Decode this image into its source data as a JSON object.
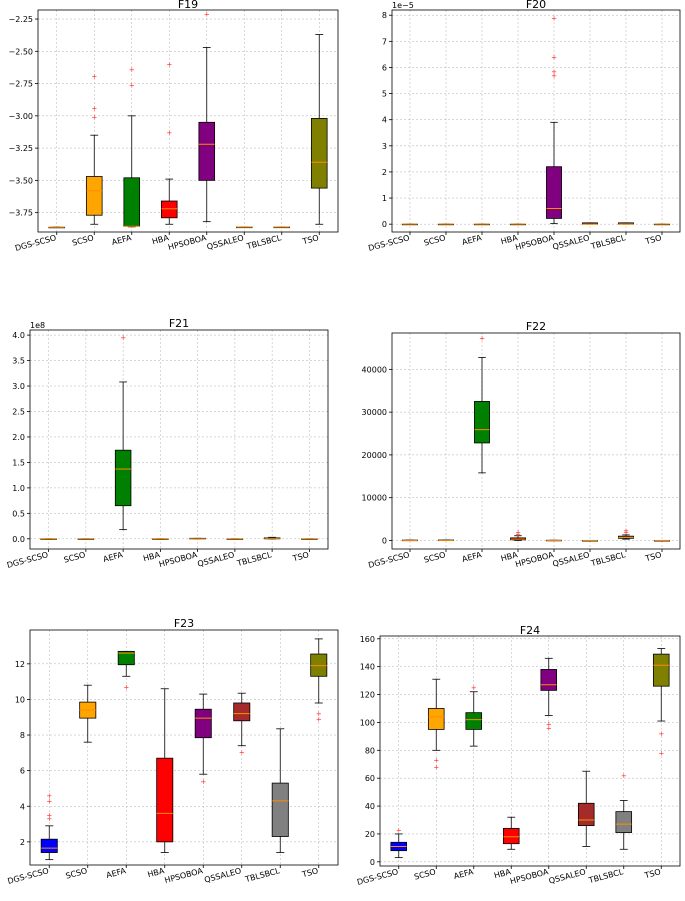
{
  "categories": [
    "DGS-SCSO",
    "SCSO",
    "AEFA",
    "HBA",
    "HPSOBOA",
    "QSSALEO",
    "TBLSBCL",
    "TSO"
  ],
  "colors": [
    "#0000ff",
    "#ffa500",
    "#008000",
    "#ff0000",
    "#800080",
    "#a52a2a",
    "#808080",
    "#808000"
  ],
  "chart_data": [
    {
      "type": "box",
      "title": "F19",
      "exponent": "",
      "ylim": [
        -3.9,
        -2.18
      ],
      "yticks": [
        -3.75,
        -3.5,
        -3.25,
        -3.0,
        -2.75,
        -2.5,
        -2.25
      ],
      "ytick_labels": [
        "−3.75",
        "−3.50",
        "−3.25",
        "−3.00",
        "−2.75",
        "−2.50",
        "−2.25"
      ],
      "series": [
        {
          "name": "DGS-SCSO",
          "min": -3.863,
          "q1": -3.863,
          "median": -3.863,
          "q3": -3.863,
          "max": -3.863,
          "outliers": []
        },
        {
          "name": "SCSO",
          "min": -3.84,
          "q1": -3.77,
          "median": -3.58,
          "q3": -3.47,
          "max": -3.15,
          "outliers": [
            -2.69,
            -2.94,
            -3.01
          ]
        },
        {
          "name": "AEFA",
          "min": -3.86,
          "q1": -3.855,
          "median": -3.855,
          "q3": -3.48,
          "max": -3.0,
          "outliers": [
            -2.64,
            -2.76
          ]
        },
        {
          "name": "HBA",
          "min": -3.84,
          "q1": -3.79,
          "median": -3.72,
          "q3": -3.66,
          "max": -3.49,
          "outliers": [
            -2.6,
            -3.13
          ]
        },
        {
          "name": "HPSOBOA",
          "min": -3.82,
          "q1": -3.5,
          "median": -3.22,
          "q3": -3.05,
          "max": -2.47,
          "outliers": [
            -2.21
          ]
        },
        {
          "name": "QSSALEO",
          "min": -3.862,
          "q1": -3.862,
          "median": -3.862,
          "q3": -3.862,
          "max": -3.862,
          "outliers": []
        },
        {
          "name": "TBLSBCL",
          "min": -3.862,
          "q1": -3.862,
          "median": -3.862,
          "q3": -3.862,
          "max": -3.862,
          "outliers": []
        },
        {
          "name": "TSO",
          "min": -3.84,
          "q1": -3.56,
          "median": -3.36,
          "q3": -3.02,
          "max": -2.37,
          "outliers": []
        }
      ]
    },
    {
      "type": "box",
      "title": "F20",
      "exponent": "1e−5",
      "ylim": [
        -0.3,
        8.2
      ],
      "yticks": [
        0,
        1,
        2,
        3,
        4,
        5,
        6,
        7,
        8
      ],
      "ytick_labels": [
        "0",
        "1",
        "2",
        "3",
        "4",
        "5",
        "6",
        "7",
        "8"
      ],
      "series": [
        {
          "name": "DGS-SCSO",
          "min": 0,
          "q1": 0,
          "median": 0,
          "q3": 0,
          "max": 0,
          "outliers": []
        },
        {
          "name": "SCSO",
          "min": 0,
          "q1": 0,
          "median": 0,
          "q3": 0,
          "max": 0,
          "outliers": []
        },
        {
          "name": "AEFA",
          "min": 0,
          "q1": 0,
          "median": 0,
          "q3": 0,
          "max": 0,
          "outliers": []
        },
        {
          "name": "HBA",
          "min": 0,
          "q1": 0,
          "median": 0,
          "q3": 0,
          "max": 0,
          "outliers": []
        },
        {
          "name": "HPSOBOA",
          "min": 0.02,
          "q1": 0.22,
          "median": 0.6,
          "q3": 2.2,
          "max": 3.9,
          "outliers": [
            5.7,
            5.85,
            6.4,
            7.9
          ]
        },
        {
          "name": "QSSALEO",
          "min": 0,
          "q1": 0,
          "median": 0,
          "q3": 0.05,
          "max": 0.05,
          "outliers": []
        },
        {
          "name": "TBLSBCL",
          "min": 0,
          "q1": 0,
          "median": 0,
          "q3": 0.05,
          "max": 0.05,
          "outliers": []
        },
        {
          "name": "TSO",
          "min": 0,
          "q1": 0,
          "median": 0,
          "q3": 0,
          "max": 0,
          "outliers": []
        }
      ]
    },
    {
      "type": "box",
      "title": "F21",
      "exponent": "1e8",
      "ylim": [
        -0.2,
        4.1
      ],
      "yticks": [
        0,
        0.5,
        1.0,
        1.5,
        2.0,
        2.5,
        3.0,
        3.5,
        4.0
      ],
      "ytick_labels": [
        "0.0",
        "0.5",
        "1.0",
        "1.5",
        "2.0",
        "2.5",
        "3.0",
        "3.5",
        "4.0"
      ],
      "series": [
        {
          "name": "DGS-SCSO",
          "min": 0,
          "q1": 0,
          "median": 0,
          "q3": 0,
          "max": 0,
          "outliers": []
        },
        {
          "name": "SCSO",
          "min": 0,
          "q1": 0,
          "median": 0,
          "q3": 0,
          "max": 0,
          "outliers": []
        },
        {
          "name": "AEFA",
          "min": 0.18,
          "q1": 0.65,
          "median": 1.37,
          "q3": 1.74,
          "max": 3.08,
          "outliers": [
            3.95
          ]
        },
        {
          "name": "HBA",
          "min": 0,
          "q1": 0,
          "median": 0,
          "q3": 0,
          "max": 0,
          "outliers": []
        },
        {
          "name": "HPSOBOA",
          "min": 0,
          "q1": 0,
          "median": 0,
          "q3": 0.01,
          "max": 0.01,
          "outliers": []
        },
        {
          "name": "QSSALEO",
          "min": 0,
          "q1": 0,
          "median": 0,
          "q3": 0,
          "max": 0,
          "outliers": []
        },
        {
          "name": "TBLSBCL",
          "min": 0,
          "q1": 0,
          "median": 0.01,
          "q3": 0.02,
          "max": 0.03,
          "outliers": []
        },
        {
          "name": "TSO",
          "min": 0,
          "q1": 0,
          "median": 0,
          "q3": 0,
          "max": 0,
          "outliers": []
        }
      ]
    },
    {
      "type": "box",
      "title": "F22",
      "exponent": "",
      "ylim": [
        -2000,
        48500
      ],
      "yticks": [
        0,
        10000,
        20000,
        30000,
        40000
      ],
      "ytick_labels": [
        "0",
        "10000",
        "20000",
        "30000",
        "40000"
      ],
      "series": [
        {
          "name": "DGS-SCSO",
          "min": 0,
          "q1": 0,
          "median": 0,
          "q3": 80,
          "max": 80,
          "outliers": []
        },
        {
          "name": "SCSO",
          "min": 0,
          "q1": 0,
          "median": 0,
          "q3": 100,
          "max": 100,
          "outliers": []
        },
        {
          "name": "AEFA",
          "min": 15800,
          "q1": 22800,
          "median": 25900,
          "q3": 32500,
          "max": 42800,
          "outliers": [
            47300
          ]
        },
        {
          "name": "HBA",
          "min": 0,
          "q1": 150,
          "median": 300,
          "q3": 600,
          "max": 1100,
          "outliers": [
            1500,
            2000
          ]
        },
        {
          "name": "HPSOBOA",
          "min": 0,
          "q1": 0,
          "median": 0,
          "q3": 50,
          "max": 50,
          "outliers": []
        },
        {
          "name": "QSSALEO",
          "min": 0,
          "q1": 0,
          "median": 0,
          "q3": 0,
          "max": 0,
          "outliers": []
        },
        {
          "name": "TBLSBCL",
          "min": 300,
          "q1": 500,
          "median": 700,
          "q3": 1000,
          "max": 1300,
          "outliers": [
            2000,
            2300
          ]
        },
        {
          "name": "TSO",
          "min": 0,
          "q1": 0,
          "median": 0,
          "q3": 0,
          "max": 0,
          "outliers": []
        }
      ]
    },
    {
      "type": "box",
      "title": "F23",
      "exponent": "",
      "ylim": [
        0.7,
        13.9
      ],
      "yticks": [
        2,
        4,
        6,
        8,
        10,
        12
      ],
      "ytick_labels": [
        "2",
        "4",
        "6",
        "8",
        "10",
        "12"
      ],
      "series": [
        {
          "name": "DGS-SCSO",
          "min": 1.0,
          "q1": 1.4,
          "median": 1.65,
          "q3": 2.15,
          "max": 2.9,
          "outliers": [
            3.3,
            3.5,
            4.3,
            4.6
          ]
        },
        {
          "name": "SCSO",
          "min": 7.6,
          "q1": 8.95,
          "median": 9.4,
          "q3": 9.85,
          "max": 10.8,
          "outliers": []
        },
        {
          "name": "AEFA",
          "min": 11.3,
          "q1": 11.95,
          "median": 12.6,
          "q3": 12.7,
          "max": 12.7,
          "outliers": [
            10.7
          ]
        },
        {
          "name": "HBA",
          "min": 1.4,
          "q1": 2.0,
          "median": 3.6,
          "q3": 6.7,
          "max": 10.6,
          "outliers": []
        },
        {
          "name": "HPSOBOA",
          "min": 5.8,
          "q1": 7.85,
          "median": 8.95,
          "q3": 9.45,
          "max": 10.3,
          "outliers": [
            5.4
          ]
        },
        {
          "name": "QSSALEO",
          "min": 7.4,
          "q1": 8.8,
          "median": 9.2,
          "q3": 9.8,
          "max": 10.35,
          "outliers": [
            7.05
          ]
        },
        {
          "name": "TBLSBCL",
          "min": 1.4,
          "q1": 2.3,
          "median": 4.3,
          "q3": 5.3,
          "max": 8.35,
          "outliers": []
        },
        {
          "name": "TSO",
          "min": 9.8,
          "q1": 11.3,
          "median": 11.9,
          "q3": 12.55,
          "max": 13.4,
          "outliers": [
            8.9,
            9.2
          ]
        }
      ]
    },
    {
      "type": "box",
      "title": "F24",
      "exponent": "",
      "ylim": [
        -3,
        162
      ],
      "yticks": [
        0,
        20,
        40,
        60,
        80,
        100,
        120,
        140,
        160
      ],
      "ytick_labels": [
        "0",
        "20",
        "40",
        "60",
        "80",
        "100",
        "120",
        "140",
        "160"
      ],
      "series": [
        {
          "name": "DGS-SCSO",
          "min": 3,
          "q1": 8,
          "median": 11,
          "q3": 14,
          "max": 20,
          "outliers": [
            23
          ]
        },
        {
          "name": "SCSO",
          "min": 80,
          "q1": 95,
          "median": 104,
          "q3": 110,
          "max": 131,
          "outliers": [
            73,
            68
          ]
        },
        {
          "name": "AEFA",
          "min": 83,
          "q1": 95,
          "median": 102,
          "q3": 107,
          "max": 122,
          "outliers": [
            125
          ]
        },
        {
          "name": "HBA",
          "min": 9,
          "q1": 13,
          "median": 18,
          "q3": 24,
          "max": 32,
          "outliers": []
        },
        {
          "name": "HPSOBOA",
          "min": 105,
          "q1": 123,
          "median": 127,
          "q3": 138,
          "max": 146,
          "outliers": [
            96,
            99
          ]
        },
        {
          "name": "QSSALEO",
          "min": 11,
          "q1": 26,
          "median": 30,
          "q3": 42,
          "max": 65,
          "outliers": []
        },
        {
          "name": "TBLSBCL",
          "min": 9,
          "q1": 21,
          "median": 27,
          "q3": 36,
          "max": 44,
          "outliers": [
            62
          ]
        },
        {
          "name": "TSO",
          "min": 101,
          "q1": 126,
          "median": 141,
          "q3": 149,
          "max": 153,
          "outliers": [
            78,
            92
          ]
        }
      ]
    }
  ]
}
